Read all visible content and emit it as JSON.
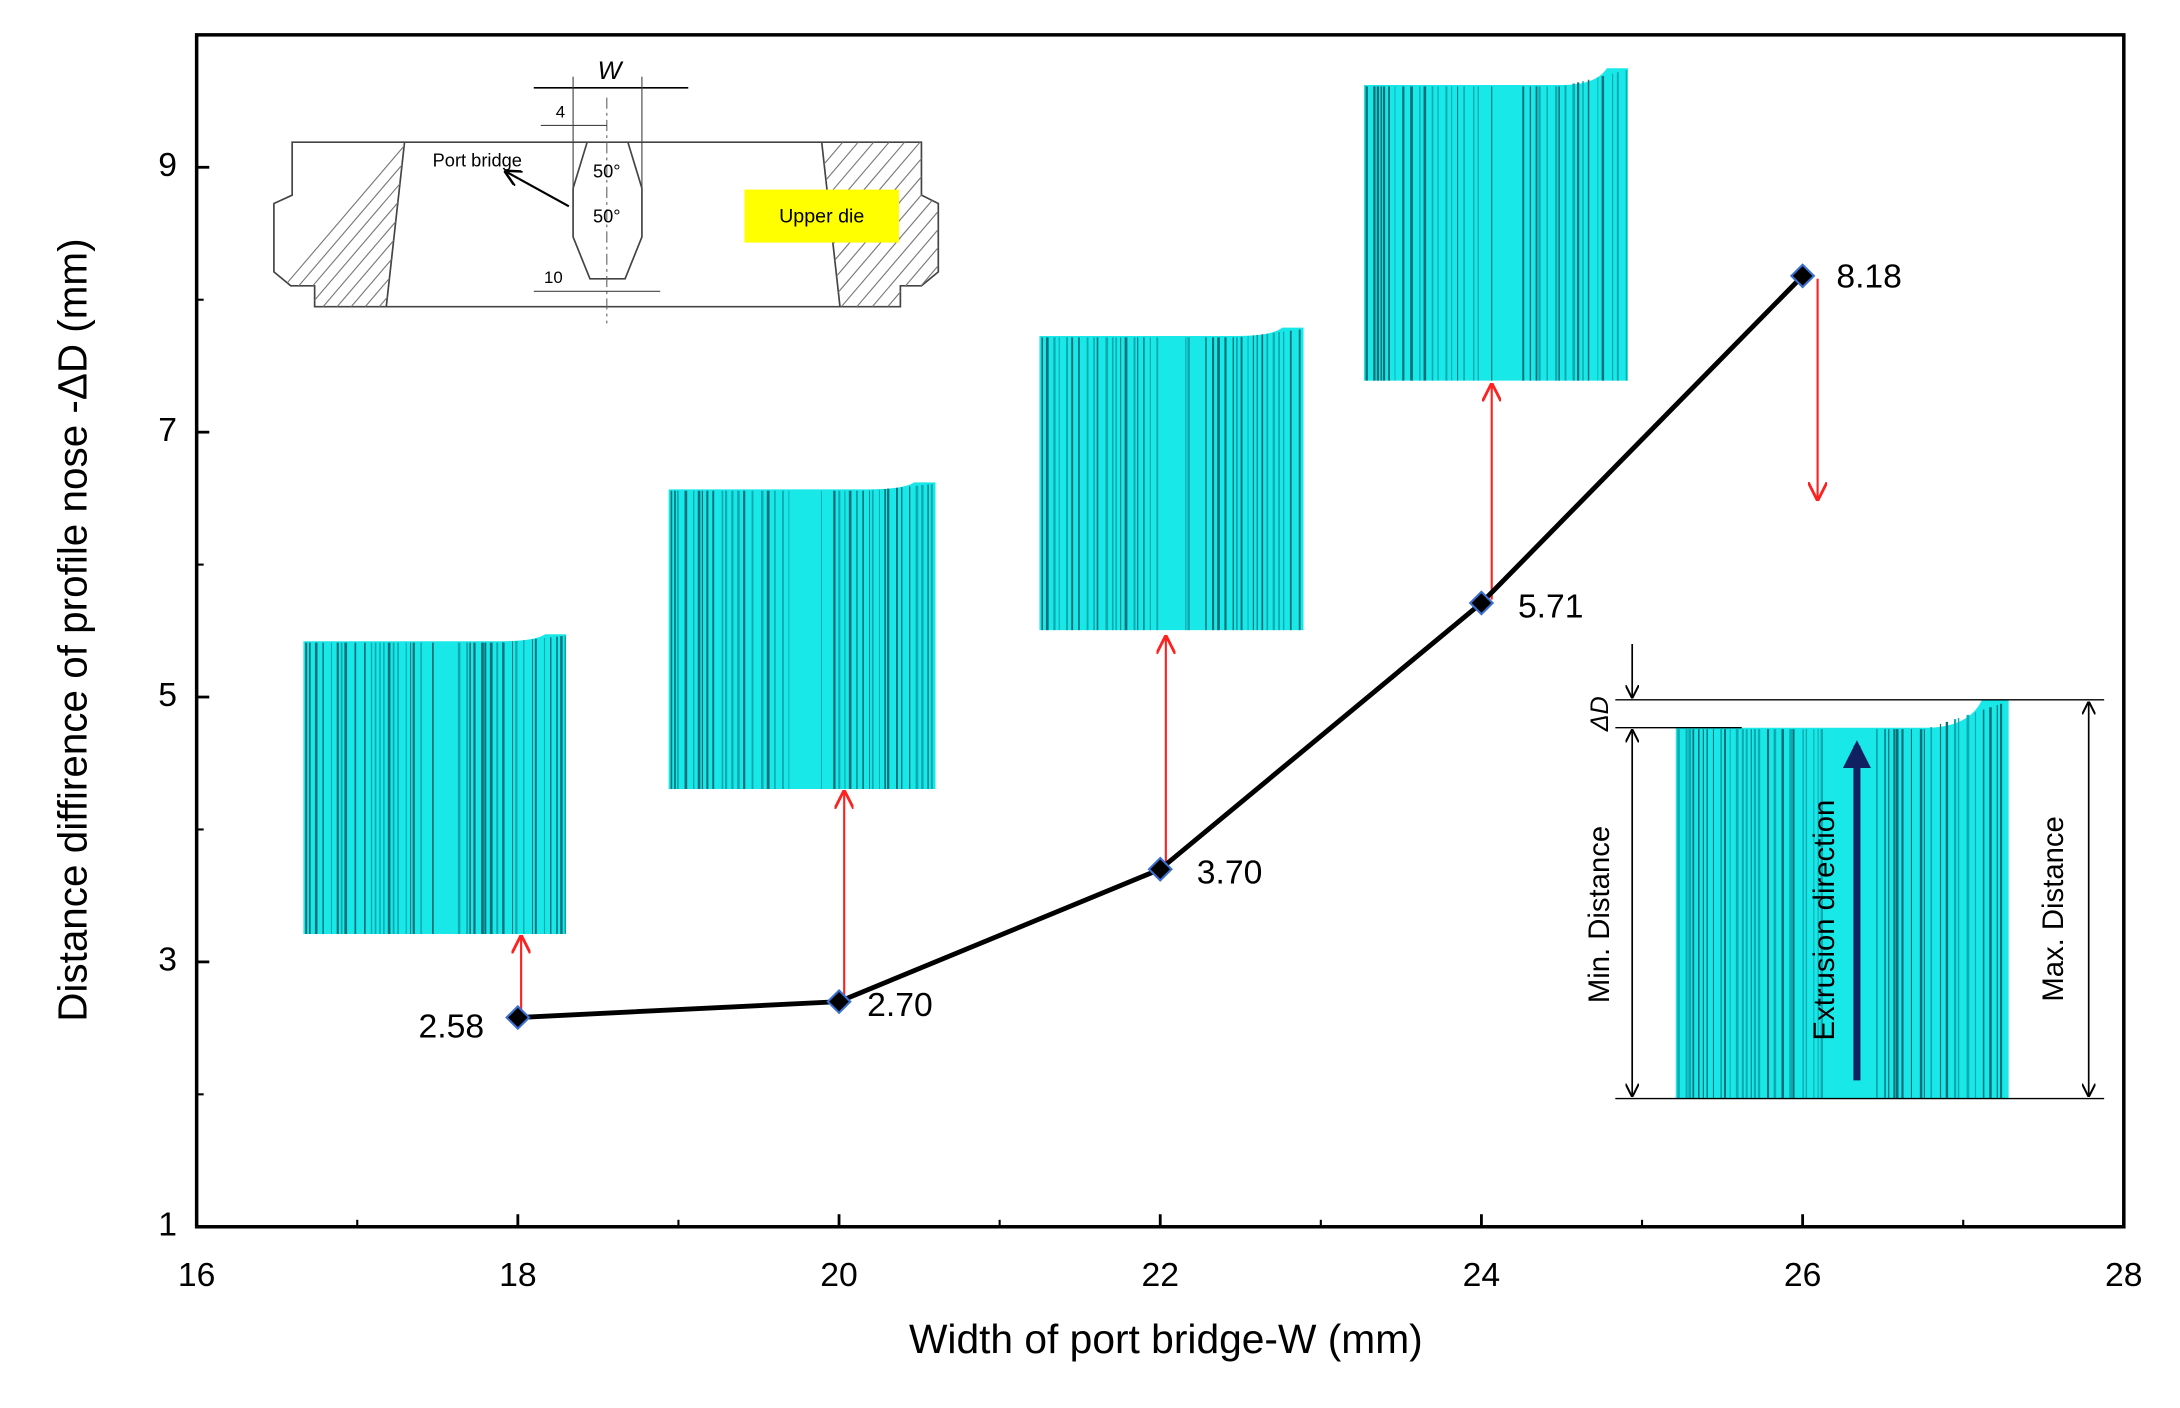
{
  "chart_data": {
    "type": "line",
    "xlabel": "Width of port bridge-W (mm)",
    "ylabel": "Distance diffirence of profile nose -ΔD (mm)",
    "x": [
      18,
      20,
      22,
      24,
      26
    ],
    "values": [
      2.58,
      2.7,
      3.7,
      5.71,
      8.18
    ],
    "value_labels": [
      "2.58",
      "2.70",
      "3.70",
      "5.71",
      "8.18"
    ],
    "color": "#000000",
    "xlim": [
      16,
      28
    ],
    "xticks": [
      16,
      18,
      20,
      22,
      24,
      26,
      28
    ],
    "ylim": [
      1,
      10
    ],
    "yticks": [
      1,
      3,
      5,
      7,
      9
    ],
    "annotations": {
      "die_width": "W",
      "die_top": "4",
      "port_bridge": "Port bridge",
      "angle_top": "50°",
      "angle_bottom": "50°",
      "upper_die": "Upper die",
      "die_bottom": "10",
      "delta_d": "ΔD",
      "min_distance": "Min. Distance",
      "extrusion_direction": "Extrusion direction",
      "max_distance": "Max. Distance"
    }
  }
}
